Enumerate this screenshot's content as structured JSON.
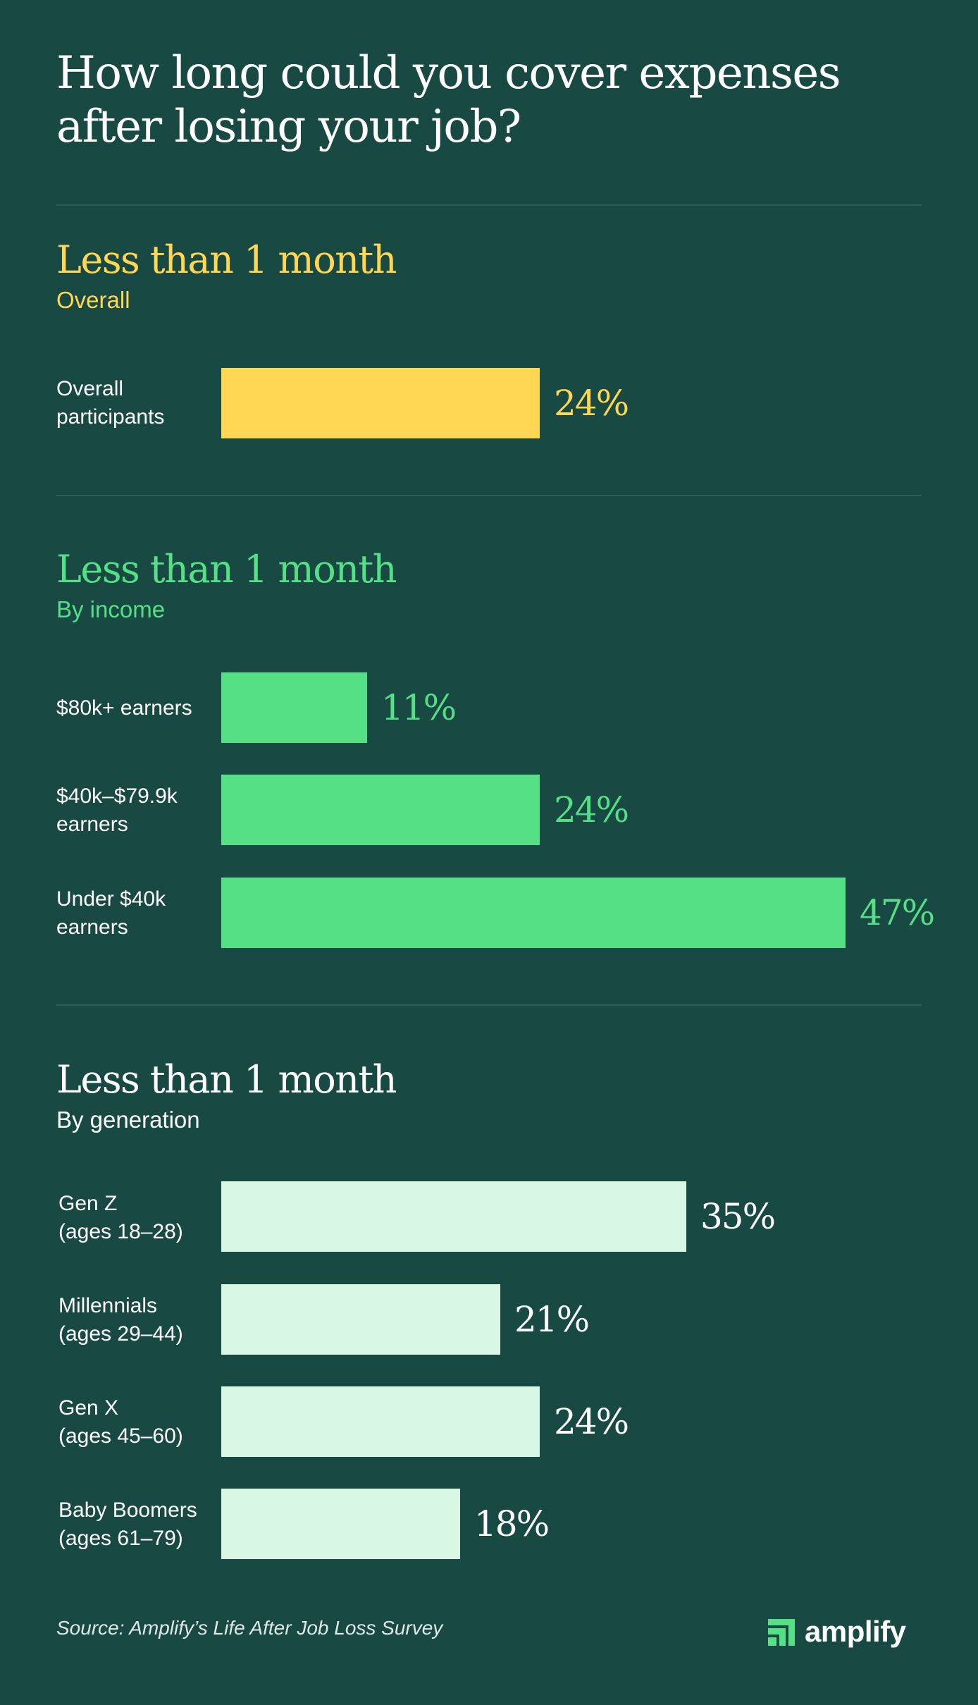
{
  "title": "How long could you cover expenses after losing your job?",
  "colors": {
    "background": "#184a43",
    "overall": "#ffd752",
    "income": "#56e086",
    "generation_bar": "#d7f6e3",
    "generation_text": "#ffffff"
  },
  "sections": [
    {
      "title": "Less than 1 month",
      "subtitle": "Overall",
      "rows": [
        {
          "label": "Overall\nparticipants",
          "value_label": "24%"
        }
      ]
    },
    {
      "title": "Less than 1 month",
      "subtitle": "By income",
      "rows": [
        {
          "label": "$80k+ earners",
          "value_label": "11%"
        },
        {
          "label": "$40k–$79.9k\nearners",
          "value_label": "24%"
        },
        {
          "label": "Under $40k\nearners",
          "value_label": "47%"
        }
      ]
    },
    {
      "title": "Less than 1 month",
      "subtitle": "By generation",
      "rows": [
        {
          "label": "Gen Z\n(ages 18–28)",
          "value_label": "35%"
        },
        {
          "label": "Millennials\n(ages 29–44)",
          "value_label": "21%"
        },
        {
          "label": "Gen X\n(ages 45–60)",
          "value_label": "24%"
        },
        {
          "label": "Baby Boomers\n(ages 61–79)",
          "value_label": "18%"
        }
      ]
    }
  ],
  "chart_data": [
    {
      "type": "bar",
      "orientation": "horizontal",
      "title": "Less than 1 month",
      "subtitle": "Overall",
      "categories": [
        "Overall participants"
      ],
      "values": [
        24
      ],
      "unit": "%"
    },
    {
      "type": "bar",
      "orientation": "horizontal",
      "title": "Less than 1 month",
      "subtitle": "By income",
      "categories": [
        "$80k+ earners",
        "$40k–$79.9k earners",
        "Under $40k earners"
      ],
      "values": [
        11,
        24,
        47
      ],
      "unit": "%"
    },
    {
      "type": "bar",
      "orientation": "horizontal",
      "title": "Less than 1 month",
      "subtitle": "By generation",
      "categories": [
        "Gen Z (ages 18–28)",
        "Millennials (ages 29–44)",
        "Gen X (ages 45–60)",
        "Baby Boomers (ages 61–79)"
      ],
      "values": [
        35,
        21,
        24,
        18
      ],
      "unit": "%"
    }
  ],
  "source": "Source: Amplify’s Life After Job Loss Survey",
  "logo": {
    "text": "amplify",
    "icon": "amplify-logo-icon"
  }
}
